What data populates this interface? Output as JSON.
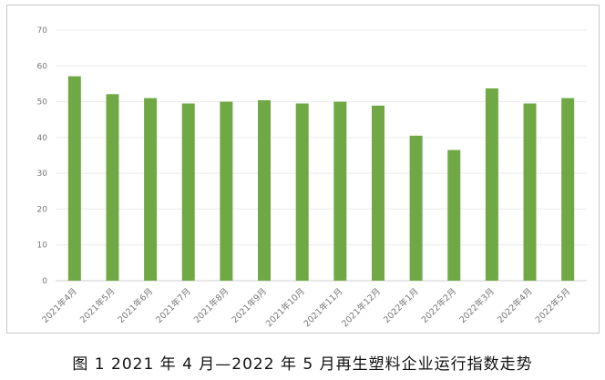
{
  "chart_data": {
    "type": "bar",
    "categories": [
      "2021年4月",
      "2021年5月",
      "2021年6月",
      "2021年7月",
      "2021年8月",
      "2021年9月",
      "2021年10月",
      "2021年11月",
      "2021年12月",
      "2022年1月",
      "2022年2月",
      "2022年3月",
      "2022年4月",
      "2022年5月"
    ],
    "values": [
      57.1,
      52.1,
      51.0,
      49.5,
      50.0,
      50.4,
      49.5,
      50.0,
      48.9,
      40.5,
      36.5,
      53.7,
      49.5,
      51.0
    ],
    "ylim": [
      0,
      70
    ],
    "yticks": [
      0,
      10,
      20,
      30,
      40,
      50,
      60,
      70
    ],
    "grid": true,
    "bar_color": "#70a845",
    "legend": "none"
  },
  "caption": "图 1  2021 年 4 月—2022 年 5 月再生塑料企业运行指数走势"
}
